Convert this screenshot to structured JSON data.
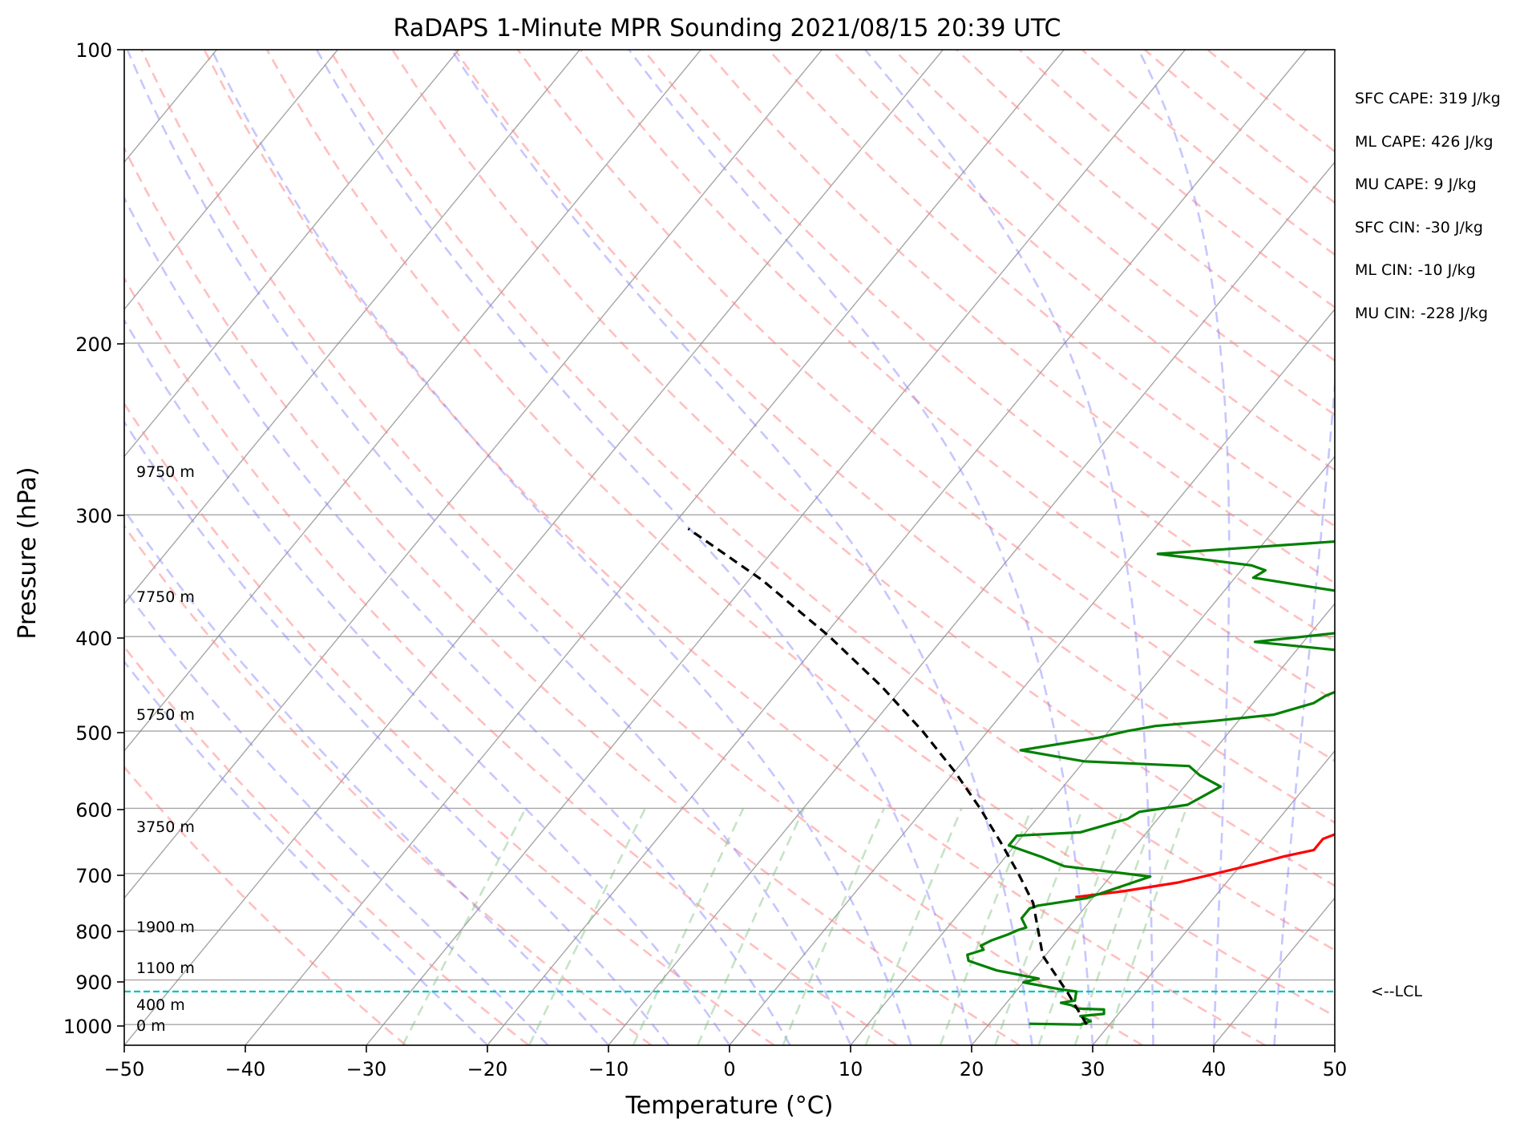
{
  "chart_data": {
    "type": "line",
    "title": "RaDAPS 1-Minute MPR Sounding 2021/08/15 20:39 UTC",
    "xlabel": "Temperature (°C)",
    "ylabel": "Pressure (hPa)",
    "xlim": [
      -50,
      50
    ],
    "ylim": [
      1050,
      100
    ],
    "y_scale": "log",
    "x_ticks": [
      "−50",
      "−40",
      "−30",
      "−20",
      "−10",
      "0",
      "10",
      "20",
      "30",
      "40",
      "50"
    ],
    "y_ticks": [
      "100",
      "200",
      "300",
      "400",
      "500",
      "600",
      "700",
      "800",
      "900",
      "1000"
    ],
    "colors": {
      "temperature": "#ff0000",
      "dewpoint": "#008000",
      "parcel": "#000000",
      "lcl_line": "#00bfbf",
      "dry_adiabats": "#ff8080",
      "moist_adiabats": "#8080ff",
      "mixing_ratio": "#80c080",
      "isotherms": "#808080"
    },
    "series": [
      {
        "key": "temperature",
        "points": [
          [
            18.5,
            740
          ],
          [
            22,
            730
          ],
          [
            26,
            715
          ],
          [
            28.5,
            700
          ],
          [
            31,
            685
          ],
          [
            33,
            672
          ],
          [
            35,
            662
          ],
          [
            35,
            645
          ],
          [
            37.5,
            620
          ],
          [
            40,
            605
          ],
          [
            41,
            600
          ],
          [
            40,
            580
          ],
          [
            39,
            565
          ],
          [
            37,
            550
          ],
          [
            35.5,
            530
          ],
          [
            35.5,
            515
          ],
          [
            36,
            505
          ],
          [
            36,
            480
          ],
          [
            35,
            465
          ],
          [
            33.5,
            445
          ],
          [
            31.5,
            428
          ],
          [
            30,
            415
          ],
          [
            28.5,
            405
          ],
          [
            28.5,
            392
          ],
          [
            28,
            385
          ],
          [
            30,
            372
          ],
          [
            31,
            365
          ],
          [
            32.5,
            355
          ],
          [
            34,
            348
          ],
          [
            35.5,
            340
          ],
          [
            33.5,
            332
          ],
          [
            35,
            325
          ],
          [
            37,
            317
          ]
        ]
      },
      {
        "key": "dewpoint",
        "points": [
          [
            23.3,
            998
          ],
          [
            27.6,
            1000
          ],
          [
            28.2,
            992
          ],
          [
            27,
            980
          ],
          [
            28.8,
            975
          ],
          [
            28.5,
            965
          ],
          [
            26.3,
            963
          ],
          [
            25.5,
            955
          ],
          [
            24.5,
            950
          ],
          [
            25.5,
            945
          ],
          [
            25,
            925
          ],
          [
            23.5,
            920
          ],
          [
            20,
            905
          ],
          [
            21,
            897
          ],
          [
            17,
            880
          ],
          [
            14,
            860
          ],
          [
            13.5,
            848
          ],
          [
            14.5,
            838
          ],
          [
            14,
            830
          ],
          [
            14.5,
            820
          ],
          [
            15.5,
            808
          ],
          [
            16,
            800
          ],
          [
            16.5,
            795
          ],
          [
            15.5,
            778
          ],
          [
            15.5,
            760
          ],
          [
            16,
            755
          ],
          [
            19.5,
            742
          ],
          [
            23.3,
            705
          ],
          [
            15.5,
            688
          ],
          [
            13,
            673
          ],
          [
            9.5,
            655
          ],
          [
            9.5,
            640
          ],
          [
            14.5,
            635
          ],
          [
            17.5,
            615
          ],
          [
            18,
            605
          ],
          [
            21.5,
            595
          ],
          [
            23,
            570
          ],
          [
            20.5,
            555
          ],
          [
            19,
            543
          ],
          [
            10,
            537
          ],
          [
            4,
            523
          ],
          [
            9.5,
            508
          ],
          [
            11.5,
            500
          ],
          [
            13.5,
            494
          ],
          [
            18,
            488
          ],
          [
            22.5,
            481
          ],
          [
            25,
            468
          ],
          [
            25.5,
            460
          ],
          [
            26.5,
            452
          ],
          [
            30,
            445
          ],
          [
            28,
            433
          ],
          [
            28,
            418
          ],
          [
            16,
            405
          ],
          [
            25.5,
            392
          ],
          [
            30,
            383
          ],
          [
            28,
            371
          ],
          [
            18.5,
            358
          ],
          [
            11.5,
            348
          ],
          [
            12,
            342
          ],
          [
            10.5,
            338
          ],
          [
            2,
            329
          ],
          [
            18,
            318
          ]
        ]
      },
      {
        "key": "parcel",
        "points": [
          [
            28.1,
            1000
          ],
          [
            27.1,
            980
          ],
          [
            25.8,
            955
          ],
          [
            24.5,
            930
          ],
          [
            19.8,
            850
          ],
          [
            15.4,
            750
          ],
          [
            12.2,
            700
          ],
          [
            8.6,
            650
          ],
          [
            4.6,
            600
          ],
          [
            0,
            550
          ],
          [
            -5.4,
            500
          ],
          [
            -11.8,
            450
          ],
          [
            -19.5,
            400
          ],
          [
            -28.9,
            350
          ],
          [
            -38.5,
            310
          ]
        ]
      }
    ],
    "lcl_pressure": 925,
    "lcl_label": "<--LCL",
    "height_labels": [
      {
        "text": "9750 m",
        "pressure": 275
      },
      {
        "text": "7750 m",
        "pressure": 370
      },
      {
        "text": "5750 m",
        "pressure": 485
      },
      {
        "text": "3750 m",
        "pressure": 628
      },
      {
        "text": "1900 m",
        "pressure": 792
      },
      {
        "text": "1100 m",
        "pressure": 878
      },
      {
        "text": "400 m",
        "pressure": 957
      },
      {
        "text": "0 m",
        "pressure": 1000
      }
    ],
    "indices": [
      "SFC CAPE: 319 J/kg",
      "ML CAPE: 426 J/kg",
      "MU CAPE: 9 J/kg",
      "SFC CIN: -30 J/kg",
      "ML CIN: -10 J/kg",
      "MU CIN: -228 J/kg"
    ],
    "grid": true
  }
}
